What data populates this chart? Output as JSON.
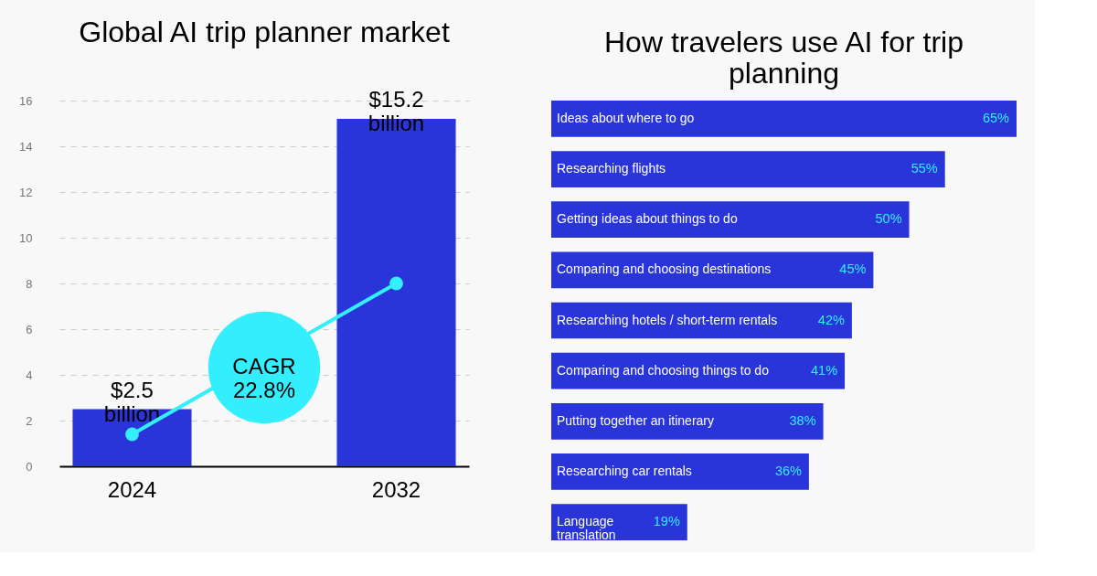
{
  "chart_data": [
    {
      "type": "bar",
      "title": "Global AI trip planner market",
      "categories": [
        "2024",
        "2032"
      ],
      "series": [
        {
          "type": "bar",
          "color": "#2a35d9",
          "values": [
            2.5,
            15.2
          ],
          "value_labels": [
            "$2.5 billion",
            "$15.2 billion"
          ]
        },
        {
          "type": "line",
          "color": "#33eefc",
          "values": [
            1.4,
            8.0
          ],
          "marker": "circle"
        }
      ],
      "ylim": [
        0,
        16
      ],
      "yticks": [
        0,
        2,
        4,
        6,
        8,
        10,
        12,
        14,
        16
      ],
      "grid": "y",
      "annotations": [
        "CAGR 22.8%"
      ]
    },
    {
      "type": "bar",
      "orientation": "horizontal",
      "title": "How travelers use AI for trip planning",
      "categories": [
        "Ideas about where to go",
        "Researching flights",
        "Getting ideas about things to do",
        "Comparing and choosing destinations",
        "Researching hotels / short-term rentals",
        "Comparing and choosing things to do",
        "Putting together an itinerary",
        "Researching car rentals",
        "Language translation"
      ],
      "values": [
        65,
        55,
        50,
        45,
        42,
        41,
        38,
        36,
        19
      ],
      "color": "#2a35d9",
      "value_labels": [
        "65%",
        "55%",
        "50%",
        "45%",
        "42%",
        "41%",
        "38%",
        "36%",
        "19%"
      ]
    }
  ]
}
